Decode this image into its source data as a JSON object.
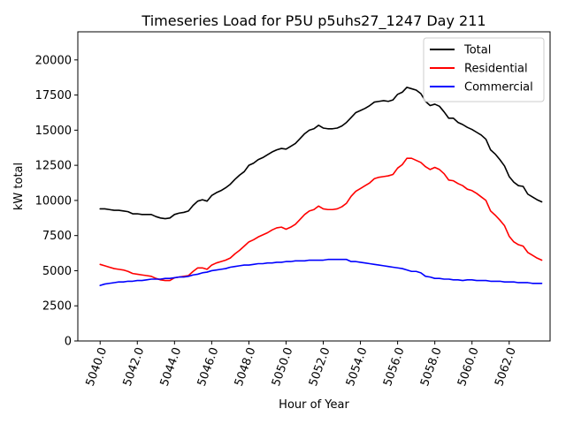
{
  "chart_data": {
    "type": "line",
    "title": "Timeseries Load for P5U p5uhs27_1247  Day 211",
    "xlabel": "Hour of Year",
    "ylabel": "kW total",
    "xlim": [
      5038.8,
      5064.2
    ],
    "ylim": [
      0,
      22000
    ],
    "xticks": [
      5040,
      5042,
      5044,
      5046,
      5048,
      5050,
      5052,
      5054,
      5056,
      5058,
      5060,
      5062
    ],
    "xtick_labels": [
      "5040.0",
      "5042.0",
      "5044.0",
      "5046.0",
      "5048.0",
      "5050.0",
      "5052.0",
      "5054.0",
      "5056.0",
      "5058.0",
      "5060.0",
      "5062.0"
    ],
    "yticks": [
      0,
      2500,
      5000,
      7500,
      10000,
      12500,
      15000,
      17500,
      20000
    ],
    "ytick_labels": [
      "0",
      "2500",
      "5000",
      "7500",
      "10000",
      "12500",
      "15000",
      "17500",
      "20000"
    ],
    "legend_position": "top-right",
    "grid": false,
    "series": [
      {
        "name": "Total",
        "color": "#000000",
        "x": [
          5040.0,
          5040.25,
          5040.5,
          5040.75,
          5041.0,
          5041.25,
          5041.5,
          5041.75,
          5042.0,
          5042.25,
          5042.5,
          5042.75,
          5043.0,
          5043.25,
          5043.5,
          5043.75,
          5044.0,
          5044.25,
          5044.5,
          5044.75,
          5045.0,
          5045.25,
          5045.5,
          5045.75,
          5046.0,
          5046.25,
          5046.5,
          5046.75,
          5047.0,
          5047.25,
          5047.5,
          5047.75,
          5048.0,
          5048.25,
          5048.5,
          5048.75,
          5049.0,
          5049.25,
          5049.5,
          5049.75,
          5050.0,
          5050.25,
          5050.5,
          5050.75,
          5051.0,
          5051.25,
          5051.5,
          5051.75,
          5052.0,
          5052.25,
          5052.5,
          5052.75,
          5053.0,
          5053.25,
          5053.5,
          5053.75,
          5054.0,
          5054.25,
          5054.5,
          5054.75,
          5055.0,
          5055.25,
          5055.5,
          5055.75,
          5056.0,
          5056.25,
          5056.5,
          5056.75,
          5057.0,
          5057.25,
          5057.5,
          5057.75,
          5058.0,
          5058.25,
          5058.5,
          5058.75,
          5059.0,
          5059.25,
          5059.5,
          5059.75,
          5060.0,
          5060.25,
          5060.5,
          5060.75,
          5061.0,
          5061.25,
          5061.5,
          5061.75,
          5062.0,
          5062.25,
          5062.5,
          5062.75,
          5063.0,
          5063.25,
          5063.5,
          5063.75
        ],
        "values": [
          9400,
          9400,
          9350,
          9300,
          9300,
          9250,
          9200,
          9050,
          9050,
          9000,
          9000,
          9000,
          8850,
          8750,
          8700,
          8750,
          9000,
          9100,
          9150,
          9250,
          9650,
          9950,
          10050,
          9950,
          10350,
          10550,
          10700,
          10900,
          11150,
          11500,
          11800,
          12050,
          12500,
          12650,
          12900,
          13050,
          13250,
          13450,
          13600,
          13700,
          13650,
          13850,
          14050,
          14400,
          14750,
          15000,
          15100,
          15350,
          15150,
          15100,
          15100,
          15150,
          15300,
          15550,
          15900,
          16250,
          16400,
          16550,
          16750,
          17000,
          17050,
          17100,
          17050,
          17150,
          17550,
          17700,
          18050,
          17950,
          17850,
          17600,
          17050,
          16750,
          16850,
          16700,
          16300,
          15850,
          15850,
          15550,
          15400,
          15200,
          15050,
          14850,
          14650,
          14350,
          13600,
          13300,
          12900,
          12450,
          11700,
          11300,
          11050,
          11000,
          10450,
          10250,
          10050,
          9900
        ]
      },
      {
        "name": "Residential",
        "color": "#ff0000",
        "x": [
          5040.0,
          5040.25,
          5040.5,
          5040.75,
          5041.0,
          5041.25,
          5041.5,
          5041.75,
          5042.0,
          5042.25,
          5042.5,
          5042.75,
          5043.0,
          5043.25,
          5043.5,
          5043.75,
          5044.0,
          5044.25,
          5044.5,
          5044.75,
          5045.0,
          5045.25,
          5045.5,
          5045.75,
          5046.0,
          5046.25,
          5046.5,
          5046.75,
          5047.0,
          5047.25,
          5047.5,
          5047.75,
          5048.0,
          5048.25,
          5048.5,
          5048.75,
          5049.0,
          5049.25,
          5049.5,
          5049.75,
          5050.0,
          5050.25,
          5050.5,
          5050.75,
          5051.0,
          5051.25,
          5051.5,
          5051.75,
          5052.0,
          5052.25,
          5052.5,
          5052.75,
          5053.0,
          5053.25,
          5053.5,
          5053.75,
          5054.0,
          5054.25,
          5054.5,
          5054.75,
          5055.0,
          5055.25,
          5055.5,
          5055.75,
          5056.0,
          5056.25,
          5056.5,
          5056.75,
          5057.0,
          5057.25,
          5057.5,
          5057.75,
          5058.0,
          5058.25,
          5058.5,
          5058.75,
          5059.0,
          5059.25,
          5059.5,
          5059.75,
          5060.0,
          5060.25,
          5060.5,
          5060.75,
          5061.0,
          5061.25,
          5061.5,
          5061.75,
          5062.0,
          5062.25,
          5062.5,
          5062.75,
          5063.0,
          5063.25,
          5063.5,
          5063.75
        ],
        "values": [
          5450,
          5350,
          5250,
          5150,
          5100,
          5050,
          4950,
          4800,
          4750,
          4700,
          4650,
          4600,
          4450,
          4350,
          4300,
          4300,
          4500,
          4550,
          4600,
          4650,
          4950,
          5200,
          5200,
          5100,
          5400,
          5550,
          5650,
          5750,
          5900,
          6200,
          6450,
          6750,
          7050,
          7200,
          7400,
          7550,
          7700,
          7900,
          8050,
          8100,
          7950,
          8100,
          8300,
          8650,
          9000,
          9250,
          9350,
          9600,
          9400,
          9350,
          9350,
          9400,
          9550,
          9800,
          10300,
          10650,
          10850,
          11050,
          11250,
          11550,
          11650,
          11700,
          11750,
          11850,
          12300,
          12550,
          13000,
          13000,
          12850,
          12700,
          12400,
          12200,
          12350,
          12200,
          11900,
          11450,
          11400,
          11200,
          11050,
          10800,
          10700,
          10500,
          10250,
          10000,
          9250,
          8950,
          8600,
          8200,
          7450,
          7050,
          6850,
          6750,
          6300,
          6100,
          5900,
          5750
        ]
      },
      {
        "name": "Commercial",
        "color": "#0000ff",
        "x": [
          5040.0,
          5040.25,
          5040.5,
          5040.75,
          5041.0,
          5041.25,
          5041.5,
          5041.75,
          5042.0,
          5042.25,
          5042.5,
          5042.75,
          5043.0,
          5043.25,
          5043.5,
          5043.75,
          5044.0,
          5044.25,
          5044.5,
          5044.75,
          5045.0,
          5045.25,
          5045.5,
          5045.75,
          5046.0,
          5046.25,
          5046.5,
          5046.75,
          5047.0,
          5047.25,
          5047.5,
          5047.75,
          5048.0,
          5048.25,
          5048.5,
          5048.75,
          5049.0,
          5049.25,
          5049.5,
          5049.75,
          5050.0,
          5050.25,
          5050.5,
          5050.75,
          5051.0,
          5051.25,
          5051.5,
          5051.75,
          5052.0,
          5052.25,
          5052.5,
          5052.75,
          5053.0,
          5053.25,
          5053.5,
          5053.75,
          5054.0,
          5054.25,
          5054.5,
          5054.75,
          5055.0,
          5055.25,
          5055.5,
          5055.75,
          5056.0,
          5056.25,
          5056.5,
          5056.75,
          5057.0,
          5057.25,
          5057.5,
          5057.75,
          5058.0,
          5058.25,
          5058.5,
          5058.75,
          5059.0,
          5059.25,
          5059.5,
          5059.75,
          5060.0,
          5060.25,
          5060.5,
          5060.75,
          5061.0,
          5061.25,
          5061.5,
          5061.75,
          5062.0,
          5062.25,
          5062.5,
          5062.75,
          5063.0,
          5063.25,
          5063.5,
          5063.75
        ],
        "values": [
          3950,
          4050,
          4100,
          4150,
          4200,
          4200,
          4250,
          4250,
          4300,
          4300,
          4350,
          4400,
          4400,
          4400,
          4450,
          4450,
          4500,
          4550,
          4550,
          4600,
          4700,
          4750,
          4850,
          4900,
          5000,
          5050,
          5100,
          5150,
          5250,
          5300,
          5350,
          5400,
          5400,
          5450,
          5500,
          5500,
          5550,
          5550,
          5600,
          5600,
          5650,
          5650,
          5700,
          5700,
          5700,
          5750,
          5750,
          5750,
          5750,
          5800,
          5800,
          5800,
          5800,
          5800,
          5650,
          5650,
          5600,
          5550,
          5500,
          5450,
          5400,
          5350,
          5300,
          5250,
          5200,
          5150,
          5050,
          4950,
          4950,
          4850,
          4600,
          4550,
          4450,
          4450,
          4400,
          4400,
          4350,
          4350,
          4300,
          4350,
          4350,
          4300,
          4300,
          4300,
          4250,
          4250,
          4250,
          4200,
          4200,
          4200,
          4150,
          4150,
          4150,
          4100,
          4100,
          4100
        ]
      }
    ]
  }
}
